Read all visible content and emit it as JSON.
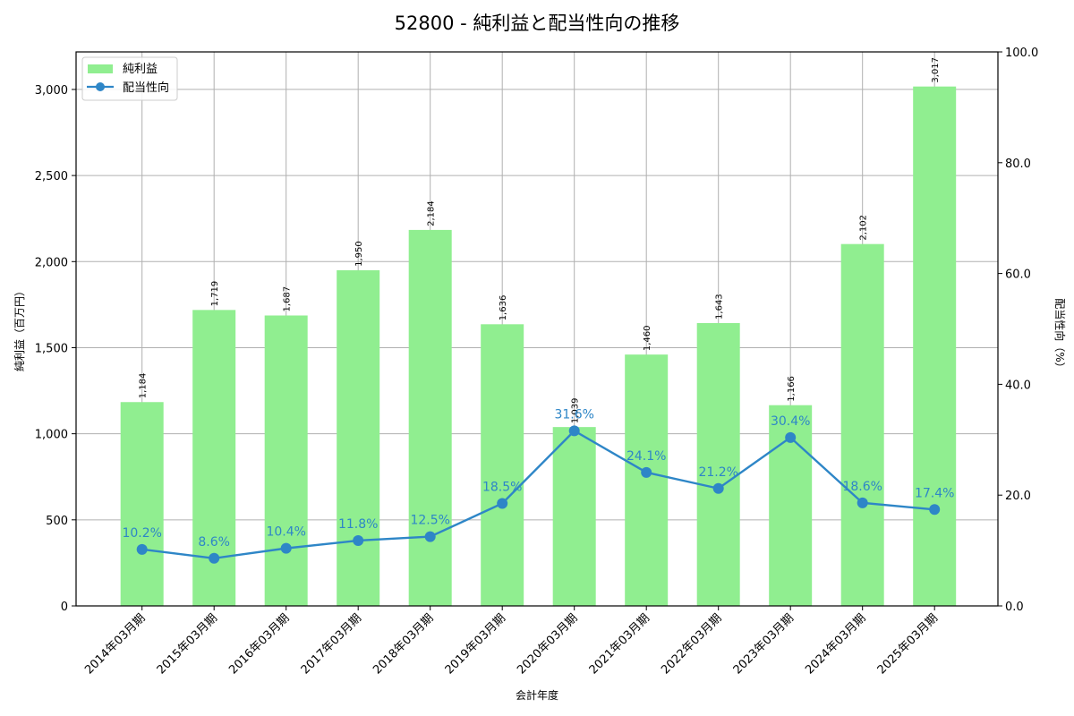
{
  "chart_data": {
    "type": "bar+line",
    "title": "52800 - 純利益と配当性向の推移",
    "xlabel": "会計年度",
    "ylabel": "純利益（百万円）",
    "y2label": "配当性向（%）",
    "categories": [
      "2014年03月期",
      "2015年03月期",
      "2016年03月期",
      "2017年03月期",
      "2018年03月期",
      "2019年03月期",
      "2020年03月期",
      "2021年03月期",
      "2022年03月期",
      "2023年03月期",
      "2024年03月期",
      "2025年03月期"
    ],
    "series": [
      {
        "name": "純利益",
        "type": "bar",
        "axis": "left",
        "color": "#90ee90",
        "values": [
          1184,
          1719,
          1687,
          1950,
          2184,
          1636,
          1039,
          1460,
          1643,
          1166,
          2102,
          3017
        ],
        "labels": [
          "1,184",
          "1,719",
          "1,687",
          "1,950",
          "2,184",
          "1,636",
          "1,039",
          "1,460",
          "1,643",
          "1,166",
          "2,102",
          "3,017"
        ]
      },
      {
        "name": "配当性向",
        "type": "line",
        "axis": "right",
        "color": "#2e86c7",
        "values": [
          10.2,
          8.6,
          10.4,
          11.8,
          12.5,
          18.5,
          31.6,
          24.1,
          21.2,
          30.4,
          18.6,
          17.4
        ],
        "labels": [
          "10.2%",
          "8.6%",
          "10.4%",
          "11.8%",
          "12.5%",
          "18.5%",
          "31.6%",
          "24.1%",
          "21.2%",
          "30.4%",
          "18.6%",
          "17.4%"
        ]
      }
    ],
    "ylim": [
      0,
      3218
    ],
    "y2lim": [
      0,
      100
    ],
    "yticks": [
      0,
      500,
      1000,
      1500,
      2000,
      2500,
      3000
    ],
    "ytick_labels": [
      "0",
      "500",
      "1,000",
      "1,500",
      "2,000",
      "2,500",
      "3,000"
    ],
    "y2ticks": [
      0,
      20,
      40,
      60,
      80,
      100
    ],
    "y2tick_labels": [
      "0.0",
      "20.0",
      "40.0",
      "60.0",
      "80.0",
      "100.0"
    ],
    "grid": true,
    "legend_position": "upper left"
  }
}
